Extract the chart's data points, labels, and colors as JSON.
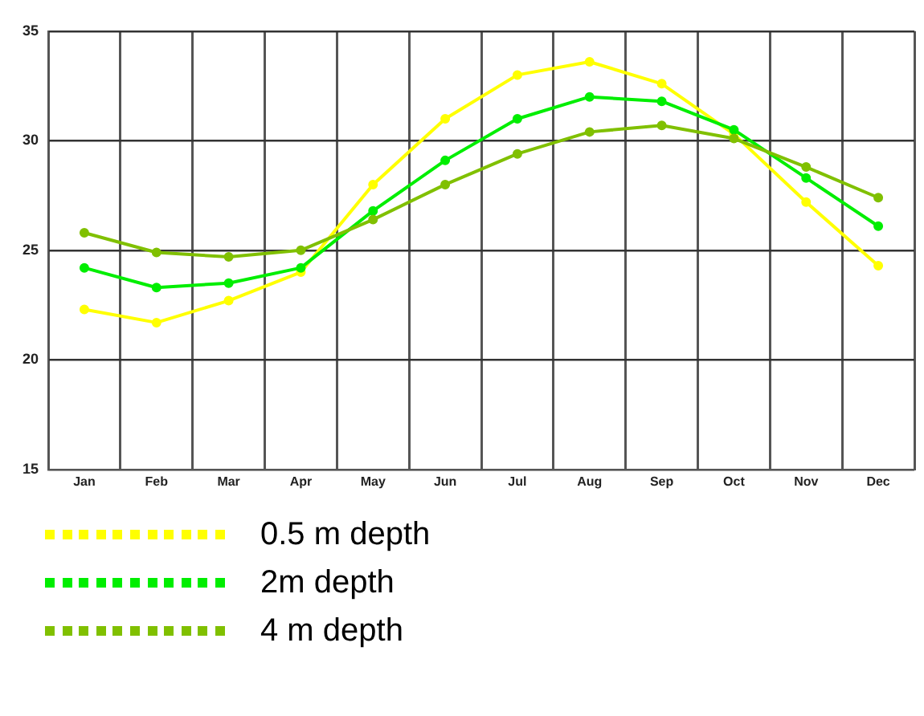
{
  "chart_data": {
    "type": "line",
    "categories": [
      "Jan",
      "Feb",
      "Mar",
      "Apr",
      "May",
      "Jun",
      "Jul",
      "Aug",
      "Sep",
      "Oct",
      "Nov",
      "Dec"
    ],
    "series": [
      {
        "name": "0.5 m depth",
        "color": "#ffff00",
        "values": [
          22.3,
          21.7,
          22.7,
          24.0,
          28.0,
          31.0,
          33.0,
          33.6,
          32.6,
          30.3,
          27.2,
          24.3
        ]
      },
      {
        "name": "2m depth",
        "color": "#00ee00",
        "values": [
          24.2,
          23.3,
          23.5,
          24.2,
          26.8,
          29.1,
          31.0,
          32.0,
          31.8,
          30.5,
          28.3,
          26.1
        ]
      },
      {
        "name": "4 m depth",
        "color": "#80c000",
        "values": [
          25.8,
          24.9,
          24.7,
          25.0,
          26.4,
          28.0,
          29.4,
          30.4,
          30.7,
          30.1,
          28.8,
          27.4
        ]
      }
    ],
    "ylim": [
      15,
      35
    ],
    "yticks": [
      15,
      20,
      25,
      30,
      35
    ],
    "grid": true,
    "legend": "bottom",
    "marker": "circle",
    "line_style": "solid"
  }
}
